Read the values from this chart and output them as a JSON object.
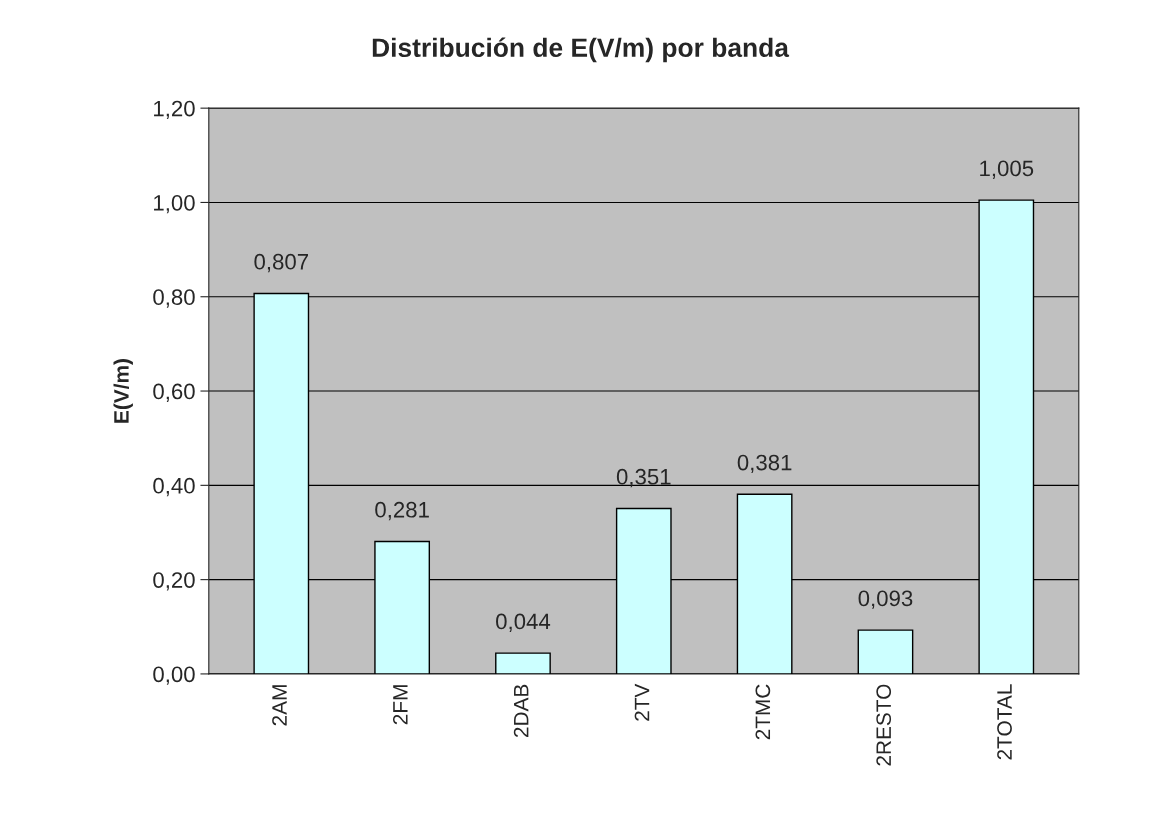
{
  "chart_data": {
    "type": "bar",
    "title": "Distribución de E(V/m) por banda",
    "ylabel": "E(V/m)",
    "categories": [
      "2AM",
      "2FM",
      "2DAB",
      "2TV",
      "2TMC",
      "2RESTO",
      "2TOTAL"
    ],
    "values": [
      0.807,
      0.281,
      0.044,
      0.351,
      0.381,
      0.093,
      1.005
    ],
    "value_labels": [
      "0,807",
      "0,281",
      "0,044",
      "0,351",
      "0,381",
      "0,093",
      "1,005"
    ],
    "color": "#ccffff",
    "ylim": [
      0,
      1.2
    ],
    "yticks": [
      {
        "value": 0,
        "label": "0,00"
      },
      {
        "value": 0.2,
        "label": "0,20"
      },
      {
        "value": 0.4,
        "label": "0,40"
      },
      {
        "value": 0.6,
        "label": "0,60"
      },
      {
        "value": 0.8,
        "label": "0,80"
      },
      {
        "value": 1.0,
        "label": "1,00"
      },
      {
        "value": 1.2,
        "label": "1,20"
      }
    ],
    "grid": "y",
    "legend": false
  }
}
